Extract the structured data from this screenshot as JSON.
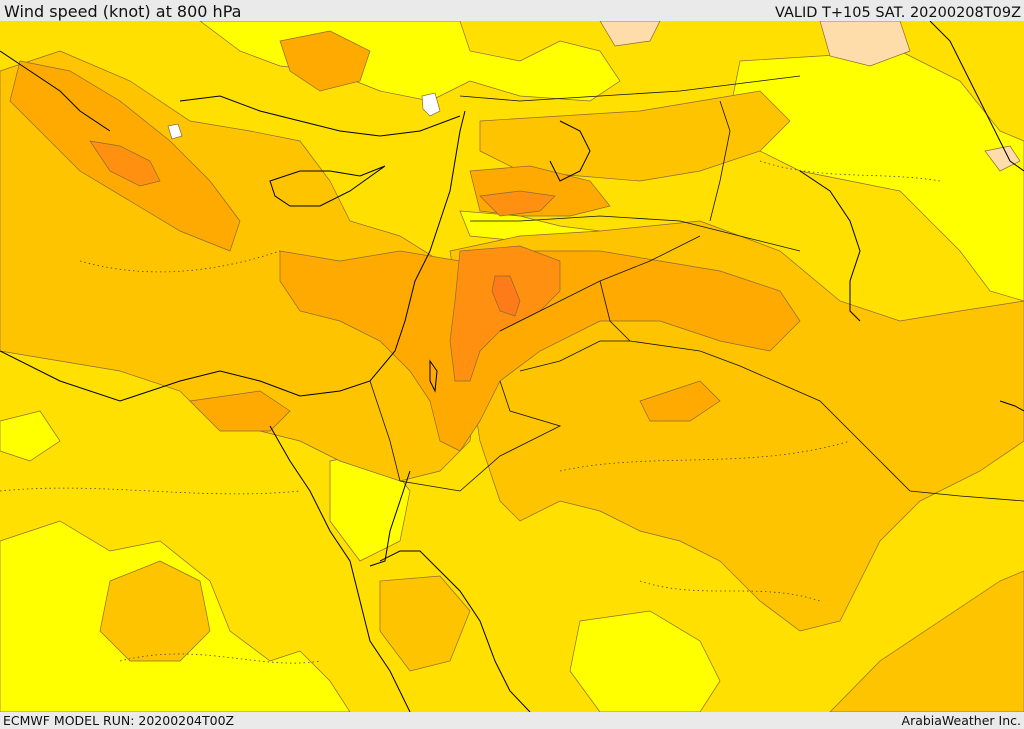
{
  "header": {
    "title": "Wind speed (knot) at 800 hPa",
    "valid": "VALID T+105 SAT. 20200208T09Z"
  },
  "footer": {
    "model_run": "ECMWF MODEL RUN: 20200204T00Z",
    "brand": "ArabiaWeather Inc."
  },
  "map": {
    "variable": "wind speed",
    "unit": "knot",
    "level_hPa": 800,
    "palette": {
      "band_0": "#ffffff",
      "band_1": "#ffddaa",
      "band_2": "#ffff00",
      "band_3": "#ffe000",
      "band_4": "#ffc400",
      "band_5": "#ffaa00",
      "band_6": "#ff9010",
      "band_7": "#ff7a18",
      "coastline": "#000000",
      "contour": "#8a6a3a"
    }
  }
}
